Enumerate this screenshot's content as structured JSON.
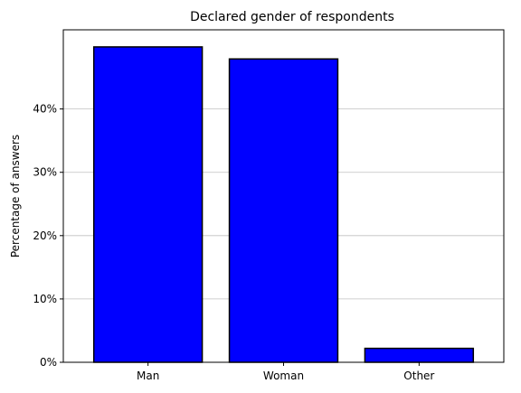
{
  "chart_data": {
    "type": "bar",
    "title": "Declared gender of respondents",
    "xlabel": "",
    "ylabel": "Percentage of answers",
    "categories": [
      "Man",
      "Woman",
      "Other"
    ],
    "values": [
      49.8,
      47.9,
      2.2
    ],
    "ylim": [
      0,
      52.5
    ],
    "yticks": [
      0,
      10,
      20,
      30,
      40
    ],
    "ytick_labels": [
      "0%",
      "10%",
      "20%",
      "30%",
      "40%"
    ],
    "grid": "horizontal",
    "legend": "none",
    "colors": {
      "bar_fill": "#0000ff",
      "bar_edge": "#000000",
      "grid": "#c0c0c0"
    }
  }
}
